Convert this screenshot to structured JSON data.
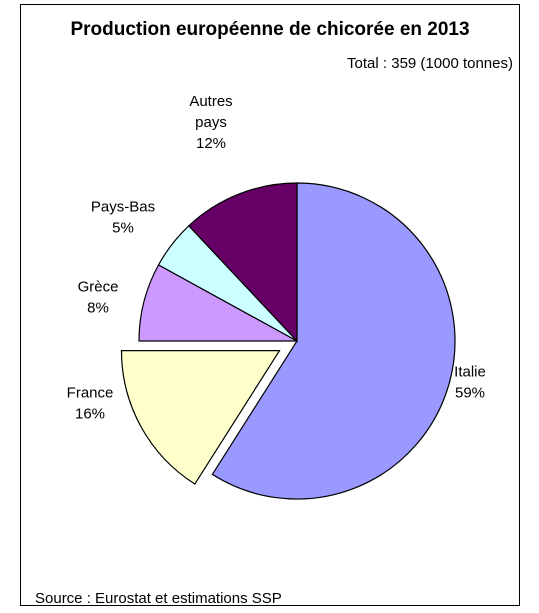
{
  "chart_data": {
    "type": "pie",
    "title": "Production européenne de chicorée en 2013",
    "subtitle": "Total : 359 (1000 tonnes)",
    "source": "Source : Eurostat et estimations SSP",
    "slices": [
      {
        "label_lines": [
          "Italie"
        ],
        "pct_label": "59%",
        "value": 59,
        "color": "#9999ff",
        "exploded": false
      },
      {
        "label_lines": [
          "France"
        ],
        "pct_label": "16%",
        "value": 16,
        "color": "#ffffcc",
        "exploded": true
      },
      {
        "label_lines": [
          "Grèce"
        ],
        "pct_label": "8%",
        "value": 8,
        "color": "#cc99ff",
        "exploded": false
      },
      {
        "label_lines": [
          "Pays-Bas"
        ],
        "pct_label": "5%",
        "value": 5,
        "color": "#ccffff",
        "exploded": false
      },
      {
        "label_lines": [
          "Autres",
          "pays"
        ],
        "pct_label": "12%",
        "value": 12,
        "color": "#660066",
        "exploded": false
      }
    ]
  }
}
